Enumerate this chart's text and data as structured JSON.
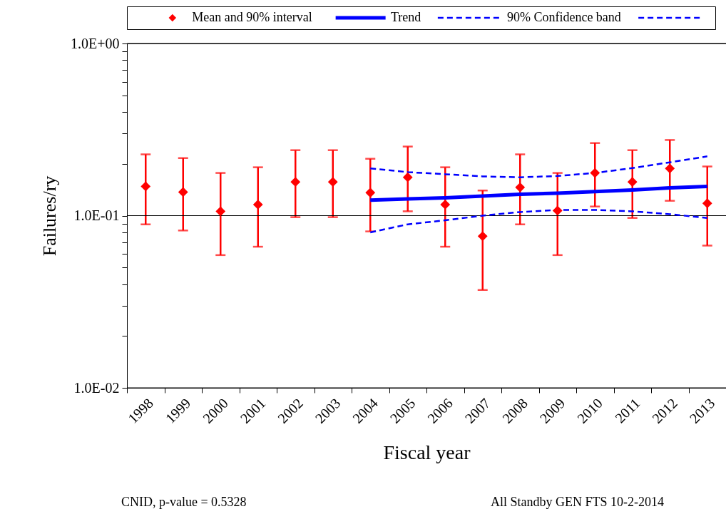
{
  "chart_data": {
    "type": "scatter",
    "xlabel": "Fiscal year",
    "ylabel": "Failures/ry",
    "annotations": [
      "CNID, p-value = 0.5328",
      "All Standby GEN FTS 10-2-2014"
    ],
    "categories": [
      "1998",
      "1999",
      "2000",
      "2001",
      "2002",
      "2003",
      "2004",
      "2005",
      "2006",
      "2007",
      "2008",
      "2009",
      "2010",
      "2011",
      "2012",
      "2013"
    ],
    "series": [
      {
        "name": "Mean and 90% interval",
        "marker": "diamond",
        "color": "#ff0000",
        "values": [
          0.148,
          0.137,
          0.106,
          0.116,
          0.157,
          0.157,
          0.136,
          0.167,
          0.116,
          0.076,
          0.146,
          0.107,
          0.177,
          0.157,
          0.188,
          0.118
        ],
        "errors": [
          [
            0.089,
            0.227
          ],
          [
            0.082,
            0.216
          ],
          [
            0.059,
            0.177
          ],
          [
            0.066,
            0.191
          ],
          [
            0.098,
            0.24
          ],
          [
            0.098,
            0.24
          ],
          [
            0.081,
            0.214
          ],
          [
            0.106,
            0.252
          ],
          [
            0.066,
            0.191
          ],
          [
            0.037,
            0.14
          ],
          [
            0.089,
            0.227
          ],
          [
            0.059,
            0.177
          ],
          [
            0.113,
            0.264
          ],
          [
            0.097,
            0.24
          ],
          [
            0.122,
            0.275
          ],
          [
            0.067,
            0.193
          ]
        ]
      },
      {
        "name": "Trend",
        "type": "line",
        "color": "#0000ff",
        "line_style": "solid",
        "values": [
          null,
          null,
          null,
          null,
          null,
          null,
          0.123,
          0.125,
          0.127,
          0.13,
          0.133,
          0.135,
          0.138,
          0.141,
          0.145,
          0.148
        ]
      },
      {
        "name": "90% Confidence band",
        "type": "line",
        "color": "#0000ff",
        "line_style": "dashed",
        "values": [
          null,
          null,
          null,
          null,
          null,
          null,
          0.188,
          0.179,
          0.174,
          0.169,
          0.167,
          0.17,
          0.177,
          0.189,
          0.204,
          0.221
        ]
      },
      {
        "type": "line",
        "color": "#0000ff",
        "line_style": "dashed",
        "values": [
          null,
          null,
          null,
          null,
          null,
          null,
          0.08,
          0.089,
          0.094,
          0.1,
          0.105,
          0.108,
          0.108,
          0.106,
          0.102,
          0.097
        ]
      }
    ],
    "ylim": [
      0.01,
      1
    ],
    "yticks": [
      {
        "value": 0.01,
        "label": "1.0E-02"
      },
      {
        "value": 0.02,
        "label": null
      },
      {
        "value": 0.03,
        "label": null
      },
      {
        "value": 0.04,
        "label": null
      },
      {
        "value": 0.05,
        "label": null
      },
      {
        "value": 0.06,
        "label": null
      },
      {
        "value": 0.07,
        "label": null
      },
      {
        "value": 0.08,
        "label": null
      },
      {
        "value": 0.09,
        "label": null
      },
      {
        "value": 0.1,
        "label": "1.0E-01"
      },
      {
        "value": 0.2,
        "label": null
      },
      {
        "value": 0.3,
        "label": null
      },
      {
        "value": 0.4,
        "label": null
      },
      {
        "value": 0.5,
        "label": null
      },
      {
        "value": 0.6,
        "label": null
      },
      {
        "value": 0.7,
        "label": null
      },
      {
        "value": 0.8,
        "label": null
      },
      {
        "value": 0.9,
        "label": null
      },
      {
        "value": 1,
        "label": "1.0E+00"
      }
    ],
    "log": true,
    "grid": "y",
    "legend": "top"
  }
}
